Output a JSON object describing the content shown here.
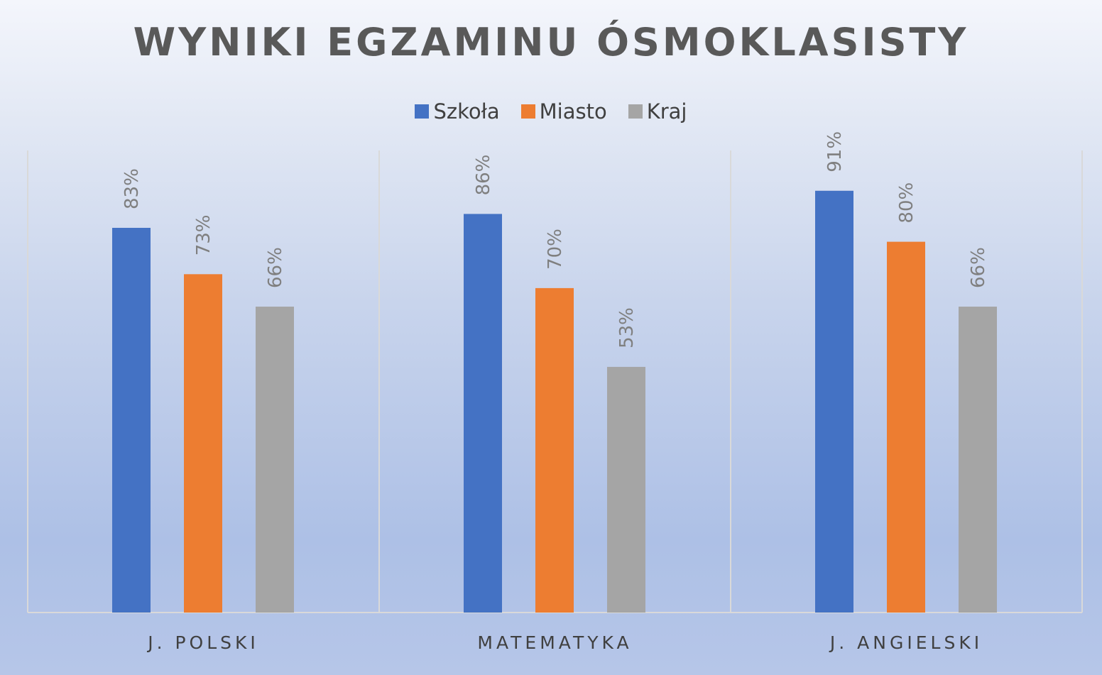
{
  "chart_data": {
    "type": "bar",
    "title": "WYNIKI EGZAMINU ÓSMOKLASISTY",
    "categories": [
      "J. POLSKI",
      "MATEMATYKA",
      "J. ANGIELSKI"
    ],
    "series": [
      {
        "name": "Szkoła",
        "color": "#4472c4",
        "values": [
          83,
          86,
          91
        ],
        "labels": [
          "83%",
          "86%",
          "91%"
        ]
      },
      {
        "name": "Miasto",
        "color": "#ed7d31",
        "values": [
          73,
          70,
          80
        ],
        "labels": [
          "73%",
          "70%",
          "80%"
        ]
      },
      {
        "name": "Kraj",
        "color": "#a5a5a5",
        "values": [
          66,
          53,
          66
        ],
        "labels": [
          "66%",
          "53%",
          "66%"
        ]
      }
    ],
    "xlabel": "",
    "ylabel": "",
    "ylim": [
      0,
      100
    ],
    "unit": "%",
    "legend_position": "top",
    "gridlines": "vertical category separators",
    "data_labels": "rotated vertical above bars"
  }
}
